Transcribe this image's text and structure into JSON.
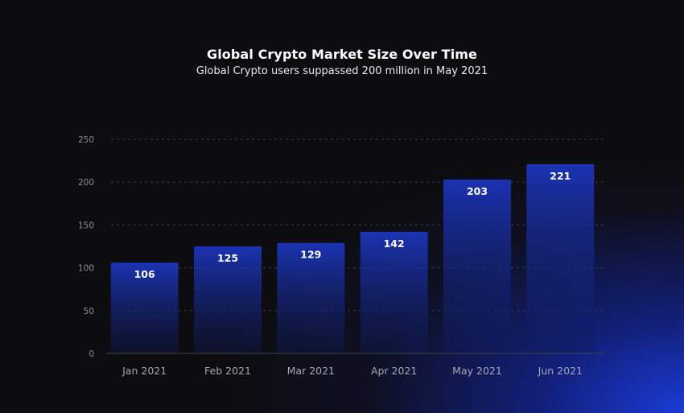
{
  "chart_data": {
    "type": "bar",
    "title": "Global Crypto Market Size Over Time",
    "subtitle": "Global Crypto users suppassed 200 million in May 2021",
    "categories": [
      "Jan 2021",
      "Feb 2021",
      "Mar 2021",
      "Apr 2021",
      "May 2021",
      "Jun 2021"
    ],
    "values": [
      106,
      125,
      129,
      142,
      203,
      221
    ],
    "ylim": [
      0,
      250
    ],
    "yticks": [
      0,
      50,
      100,
      150,
      200,
      250
    ],
    "grid": true,
    "legend": "none",
    "colors": {
      "bar_top": "#1b33b3",
      "bar_bottom": "#0f1a5a",
      "grid": "#3a3d48",
      "axis": "#3f4250"
    }
  }
}
